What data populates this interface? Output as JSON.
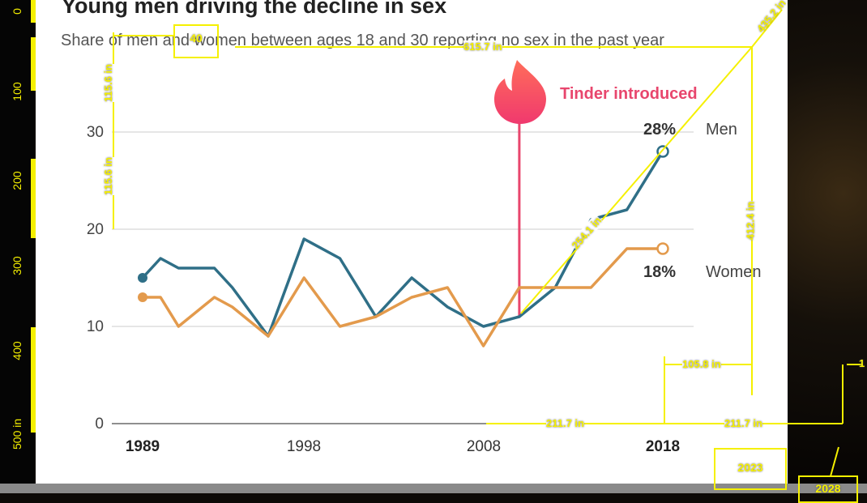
{
  "chart_data": {
    "type": "line",
    "title": "Young men driving the decline in sex",
    "subtitle": "Share of men and women between ages 18 and 30 reporting no sex in the past year",
    "x_ticks": [
      {
        "value": 1989,
        "label": "1989",
        "bold": true
      },
      {
        "value": 1998,
        "label": "1998",
        "bold": false
      },
      {
        "value": 2008,
        "label": "2008",
        "bold": false
      },
      {
        "value": 2018,
        "label": "2018",
        "bold": true
      }
    ],
    "y_ticks": [
      0,
      10,
      20,
      30
    ],
    "xlim": [
      1989,
      2018
    ],
    "ylim": [
      0,
      30
    ],
    "grid": true,
    "series": [
      {
        "name": "Men",
        "color": "#2f6f87",
        "end_label": "28%",
        "points": [
          [
            1989,
            15
          ],
          [
            1990,
            17
          ],
          [
            1991,
            16
          ],
          [
            1993,
            16
          ],
          [
            1994,
            14
          ],
          [
            1996,
            9
          ],
          [
            1998,
            19
          ],
          [
            2000,
            17
          ],
          [
            2002,
            11
          ],
          [
            2004,
            15
          ],
          [
            2006,
            12
          ],
          [
            2008,
            10
          ],
          [
            2010,
            11
          ],
          [
            2012,
            14
          ],
          [
            2014,
            21
          ],
          [
            2016,
            22
          ],
          [
            2018,
            28
          ]
        ]
      },
      {
        "name": "Women",
        "color": "#e39a4c",
        "end_label": "18%",
        "points": [
          [
            1989,
            13
          ],
          [
            1990,
            13
          ],
          [
            1991,
            10
          ],
          [
            1993,
            13
          ],
          [
            1994,
            12
          ],
          [
            1996,
            9
          ],
          [
            1998,
            15
          ],
          [
            2000,
            10
          ],
          [
            2002,
            11
          ],
          [
            2004,
            13
          ],
          [
            2006,
            14
          ],
          [
            2008,
            8
          ],
          [
            2010,
            14
          ],
          [
            2012,
            14
          ],
          [
            2014,
            14
          ],
          [
            2016,
            18
          ],
          [
            2018,
            18
          ]
        ]
      }
    ],
    "annotation": {
      "label": "Tinder introduced",
      "x": 2010,
      "color": "#e8466d",
      "icon": "tinder-flame-icon"
    }
  },
  "ruler": {
    "labels": [
      "0",
      "100",
      "200",
      "300",
      "400",
      "500 in"
    ]
  },
  "measurements": {
    "box_top": "40",
    "horizontal_top": "615.7 in",
    "vertical_left_1": "115.6 in",
    "vertical_left_2": "115.6 in",
    "diagonal_top": "435.2 in",
    "diagonal_mid": "254.1 in",
    "vertical_right": "412.4 in",
    "short_right": "105.8 in",
    "bottom_1": "211.7 in",
    "bottom_2": "211.7 in",
    "right_edge": "1",
    "box_bottom": "2023",
    "box_corner": "2028"
  }
}
